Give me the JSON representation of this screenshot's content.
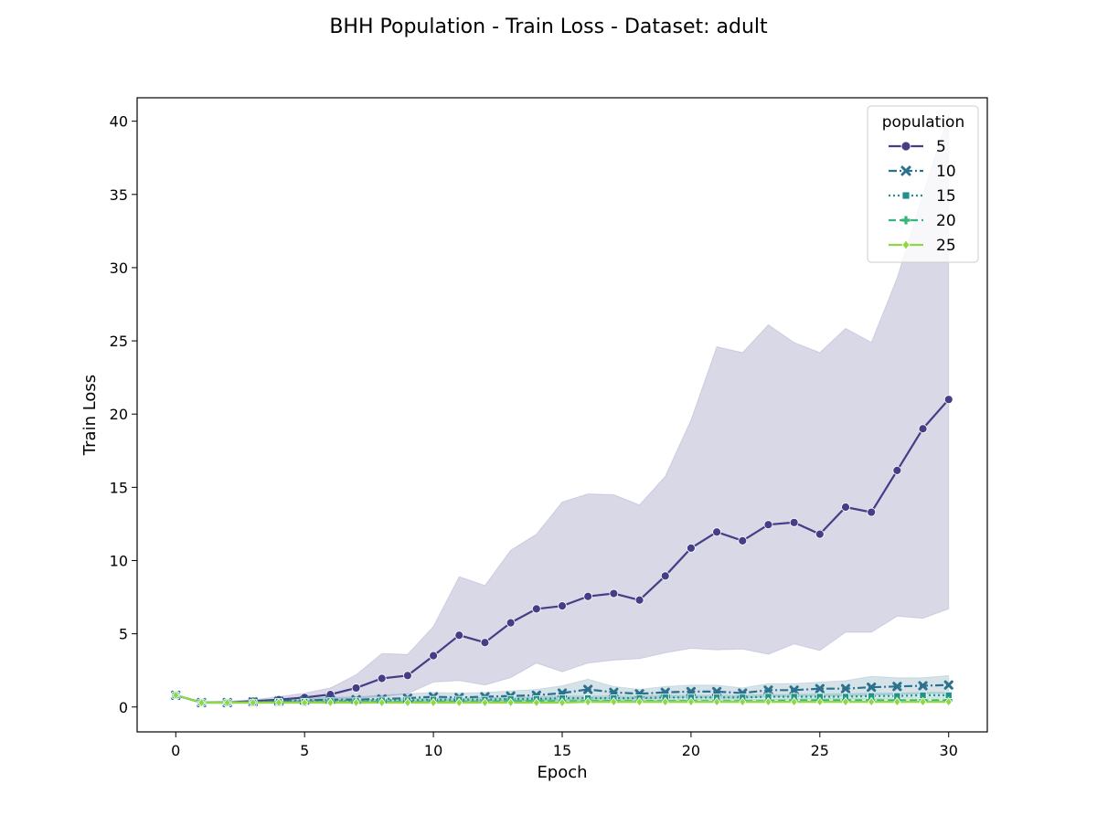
{
  "chart_data": {
    "type": "line",
    "title": "BHH Population - Train Loss - Dataset: adult",
    "xlabel": "Epoch",
    "ylabel": "Train Loss",
    "xlim": [
      -1.5,
      31.5
    ],
    "ylim": [
      -1.7,
      41.6
    ],
    "xticks": [
      0,
      5,
      10,
      15,
      20,
      25,
      30
    ],
    "yticks": [
      0,
      5,
      10,
      15,
      20,
      25,
      30,
      35,
      40
    ],
    "grid": false,
    "legend": {
      "title": "population",
      "placement": "top-right"
    },
    "x": [
      0,
      1,
      2,
      3,
      4,
      5,
      6,
      7,
      8,
      9,
      10,
      11,
      12,
      13,
      14,
      15,
      16,
      17,
      18,
      19,
      20,
      21,
      22,
      23,
      24,
      25,
      26,
      27,
      28,
      29,
      30
    ],
    "series": [
      {
        "name": "5",
        "color": "#433e85",
        "marker": "circle",
        "dash": "solid",
        "values": [
          0.8,
          0.3,
          0.3,
          0.4,
          0.5,
          0.65,
          0.85,
          1.3,
          1.95,
          2.15,
          3.5,
          4.9,
          4.4,
          5.75,
          6.7,
          6.9,
          7.55,
          7.75,
          7.3,
          8.95,
          10.85,
          11.95,
          11.35,
          12.45,
          12.6,
          11.8,
          13.65,
          13.3,
          16.15,
          19.0,
          21.0
        ],
        "band_upper": [
          0.8,
          0.35,
          0.4,
          0.5,
          0.7,
          0.95,
          1.3,
          2.2,
          3.65,
          3.6,
          5.5,
          8.9,
          8.3,
          10.7,
          11.8,
          14.0,
          14.55,
          14.5,
          13.8,
          15.75,
          19.6,
          24.6,
          24.2,
          26.1,
          24.9,
          24.2,
          25.85,
          24.9,
          29.3,
          35.0,
          40.5
        ],
        "band_lower": [
          0.8,
          0.25,
          0.25,
          0.3,
          0.35,
          0.4,
          0.5,
          0.6,
          0.7,
          0.9,
          1.7,
          1.8,
          1.5,
          2.0,
          3.0,
          2.4,
          3.0,
          3.2,
          3.3,
          3.7,
          4.0,
          3.9,
          3.95,
          3.6,
          4.3,
          3.85,
          5.1,
          5.1,
          6.2,
          6.05,
          6.7
        ]
      },
      {
        "name": "10",
        "color": "#2c728e",
        "marker": "x",
        "dash": "dashdot",
        "values": [
          0.8,
          0.3,
          0.3,
          0.35,
          0.4,
          0.45,
          0.5,
          0.5,
          0.55,
          0.6,
          0.7,
          0.65,
          0.7,
          0.75,
          0.8,
          0.95,
          1.2,
          1.0,
          0.9,
          1.0,
          1.05,
          1.05,
          0.95,
          1.15,
          1.15,
          1.25,
          1.25,
          1.35,
          1.4,
          1.45,
          1.5
        ],
        "band_upper": [
          0.8,
          0.35,
          0.35,
          0.4,
          0.5,
          0.6,
          0.65,
          0.7,
          0.8,
          0.9,
          1.0,
          0.95,
          1.0,
          1.1,
          1.2,
          1.45,
          1.9,
          1.4,
          1.2,
          1.4,
          1.5,
          1.5,
          1.3,
          1.6,
          1.6,
          1.7,
          1.8,
          2.1,
          2.0,
          2.0,
          2.15
        ],
        "band_lower": [
          0.8,
          0.25,
          0.25,
          0.3,
          0.3,
          0.3,
          0.35,
          0.35,
          0.35,
          0.35,
          0.4,
          0.4,
          0.4,
          0.4,
          0.45,
          0.5,
          0.55,
          0.55,
          0.55,
          0.6,
          0.65,
          0.6,
          0.6,
          0.7,
          0.7,
          0.75,
          0.75,
          0.8,
          0.85,
          0.9,
          0.95
        ]
      },
      {
        "name": "15",
        "color": "#21918c",
        "marker": "square",
        "dash": "dotted",
        "values": [
          0.8,
          0.3,
          0.3,
          0.3,
          0.35,
          0.35,
          0.4,
          0.4,
          0.45,
          0.45,
          0.5,
          0.5,
          0.5,
          0.55,
          0.55,
          0.6,
          0.6,
          0.6,
          0.6,
          0.65,
          0.65,
          0.65,
          0.65,
          0.7,
          0.7,
          0.7,
          0.7,
          0.75,
          0.75,
          0.8,
          0.8
        ],
        "band_upper": [
          0.8,
          0.35,
          0.35,
          0.35,
          0.4,
          0.45,
          0.5,
          0.5,
          0.55,
          0.55,
          0.6,
          0.6,
          0.65,
          0.65,
          0.7,
          0.75,
          0.75,
          0.75,
          0.75,
          0.8,
          0.8,
          0.8,
          0.8,
          0.85,
          0.85,
          0.9,
          0.9,
          0.95,
          0.95,
          1.0,
          1.0
        ],
        "band_lower": [
          0.8,
          0.25,
          0.25,
          0.25,
          0.3,
          0.3,
          0.3,
          0.3,
          0.35,
          0.35,
          0.35,
          0.35,
          0.4,
          0.4,
          0.4,
          0.4,
          0.45,
          0.45,
          0.45,
          0.45,
          0.5,
          0.5,
          0.5,
          0.5,
          0.55,
          0.55,
          0.55,
          0.55,
          0.6,
          0.6,
          0.6
        ]
      },
      {
        "name": "20",
        "color": "#35b779",
        "marker": "plus",
        "dash": "dashed",
        "values": [
          0.8,
          0.3,
          0.3,
          0.3,
          0.3,
          0.3,
          0.35,
          0.35,
          0.35,
          0.35,
          0.35,
          0.35,
          0.35,
          0.4,
          0.4,
          0.4,
          0.4,
          0.4,
          0.4,
          0.4,
          0.4,
          0.4,
          0.4,
          0.4,
          0.45,
          0.45,
          0.45,
          0.45,
          0.45,
          0.45,
          0.45
        ],
        "band_upper": [
          0.8,
          0.35,
          0.35,
          0.35,
          0.35,
          0.35,
          0.4,
          0.4,
          0.4,
          0.4,
          0.45,
          0.45,
          0.45,
          0.45,
          0.5,
          0.5,
          0.5,
          0.5,
          0.5,
          0.5,
          0.5,
          0.5,
          0.5,
          0.5,
          0.55,
          0.55,
          0.55,
          0.55,
          0.55,
          0.55,
          0.55
        ],
        "band_lower": [
          0.8,
          0.25,
          0.25,
          0.25,
          0.25,
          0.25,
          0.3,
          0.3,
          0.3,
          0.3,
          0.3,
          0.3,
          0.3,
          0.3,
          0.3,
          0.3,
          0.3,
          0.3,
          0.3,
          0.3,
          0.3,
          0.3,
          0.3,
          0.3,
          0.35,
          0.35,
          0.35,
          0.35,
          0.35,
          0.35,
          0.35
        ]
      },
      {
        "name": "25",
        "color": "#90d743",
        "marker": "diamond",
        "dash": "solid",
        "values": [
          0.8,
          0.3,
          0.3,
          0.3,
          0.3,
          0.3,
          0.3,
          0.3,
          0.3,
          0.3,
          0.3,
          0.3,
          0.3,
          0.3,
          0.3,
          0.3,
          0.35,
          0.35,
          0.35,
          0.35,
          0.35,
          0.35,
          0.35,
          0.35,
          0.35,
          0.35,
          0.35,
          0.35,
          0.35,
          0.35,
          0.35
        ],
        "band_upper": [
          0.8,
          0.35,
          0.35,
          0.35,
          0.35,
          0.35,
          0.35,
          0.35,
          0.35,
          0.35,
          0.35,
          0.35,
          0.35,
          0.35,
          0.35,
          0.35,
          0.4,
          0.4,
          0.4,
          0.4,
          0.4,
          0.4,
          0.4,
          0.4,
          0.4,
          0.4,
          0.4,
          0.4,
          0.4,
          0.4,
          0.4
        ],
        "band_lower": [
          0.8,
          0.25,
          0.25,
          0.25,
          0.25,
          0.25,
          0.25,
          0.25,
          0.25,
          0.25,
          0.25,
          0.25,
          0.25,
          0.25,
          0.25,
          0.25,
          0.3,
          0.3,
          0.3,
          0.3,
          0.3,
          0.3,
          0.3,
          0.3,
          0.3,
          0.3,
          0.3,
          0.3,
          0.3,
          0.3,
          0.3
        ]
      }
    ]
  }
}
